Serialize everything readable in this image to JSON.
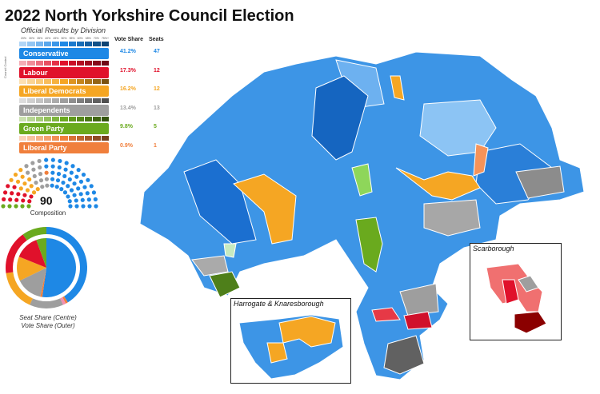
{
  "title": "2022 North Yorkshire Council Election",
  "subtitle": "Official Results by Division",
  "scale_label": "Council Control",
  "scale_ticks": [
    "20%",
    "30%",
    "35%",
    "40%",
    "45%",
    "50%",
    "55%",
    "60%",
    "65%",
    "70%",
    "75%+"
  ],
  "headers": {
    "vote_share": "Vote Share",
    "seats": "Seats"
  },
  "parties": [
    {
      "name": "Conservative",
      "vote_share": "41.2%",
      "seats": "47",
      "color": "#1e88e5",
      "vote": 41.2,
      "seat_n": 47
    },
    {
      "name": "Labour",
      "vote_share": "17.3%",
      "seats": "12",
      "color": "#e0112b",
      "vote": 17.3,
      "seat_n": 12
    },
    {
      "name": "Liberal Democrats",
      "vote_share": "16.2%",
      "seats": "12",
      "color": "#f5a623",
      "vote": 16.2,
      "seat_n": 12
    },
    {
      "name": "Independents",
      "vote_share": "13.4%",
      "seats": "13",
      "color": "#9e9e9e",
      "vote": 13.4,
      "seat_n": 13
    },
    {
      "name": "Green Party",
      "vote_share": "9.8%",
      "seats": "5",
      "color": "#6aaa1e",
      "vote": 9.8,
      "seat_n": 5
    },
    {
      "name": "Liberal Party",
      "vote_share": "0.9%",
      "seats": "1",
      "color": "#f07f3c",
      "vote": 0.9,
      "seat_n": 1
    }
  ],
  "composition": {
    "total": "90",
    "label": "Composition"
  },
  "donut": {
    "caption_1": "Seat Share (Centre)",
    "caption_2": "Vote Share (Outer)"
  },
  "insets": {
    "scarborough": "Scarborough",
    "harrogate": "Harrogate & Knaresborough"
  }
}
